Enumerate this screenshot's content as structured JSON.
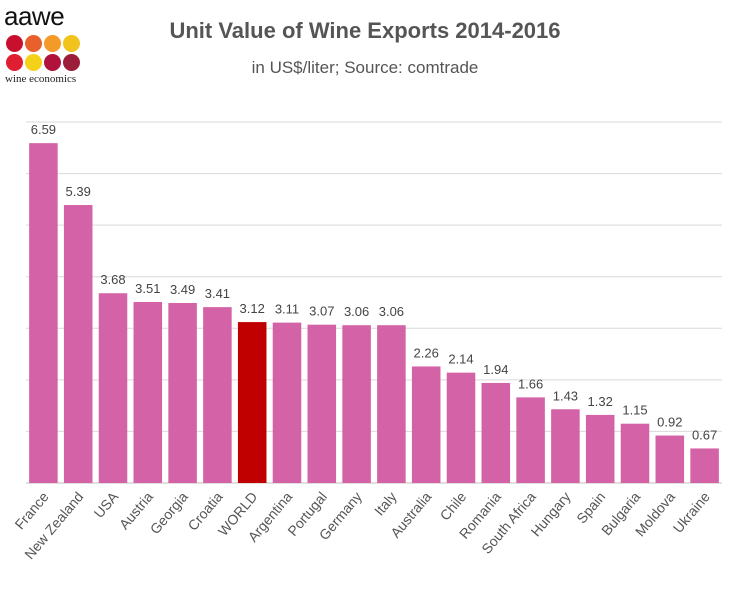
{
  "logo": {
    "word": "aawe",
    "tagline": "wine economics",
    "dot_colors": [
      "#c8102e",
      "#e8612c",
      "#f39a28",
      "#f2c31c",
      "#e01e32",
      "#f4d21a",
      "#b0123c",
      "#9c1d3a"
    ]
  },
  "colors": {
    "bar": "#d462a6",
    "highlight": "#c00000",
    "grid": "#d9d9d9",
    "label": "#444444",
    "axis_text": "#555555"
  },
  "chart_data": {
    "type": "bar",
    "title": "Unit Value of Wine Exports 2014-2016",
    "subtitle": "in US$/liter; Source: comtrade",
    "categories": [
      "France",
      "New Zealand",
      "USA",
      "Austria",
      "Georgia",
      "Croatia",
      "WORLD",
      "Argentina",
      "Portugal",
      "Germany",
      "Italy",
      "Australia",
      "Chile",
      "Romania",
      "South Africa",
      "Hungary",
      "Spain",
      "Bulgaria",
      "Moldova",
      "Ukraine"
    ],
    "values": [
      6.59,
      5.39,
      3.68,
      3.51,
      3.49,
      3.41,
      3.12,
      3.11,
      3.07,
      3.06,
      3.06,
      2.26,
      2.14,
      1.94,
      1.66,
      1.43,
      1.32,
      1.15,
      0.92,
      0.67
    ],
    "data_labels": [
      "6.59",
      "5.39",
      "3.68",
      "3.51",
      "3.49",
      "3.41",
      "3.12",
      "3.11",
      "3.07",
      "3.06",
      "3.06",
      "2.26",
      "2.14",
      "1.94",
      "1.66",
      "1.43",
      "1.32",
      "1.15",
      "0.92",
      "0.67"
    ],
    "highlight": "WORLD",
    "ylim": [
      0,
      7
    ],
    "grid_step": 1,
    "grid": true,
    "y_tick_labels_shown": false,
    "legend": "none"
  }
}
